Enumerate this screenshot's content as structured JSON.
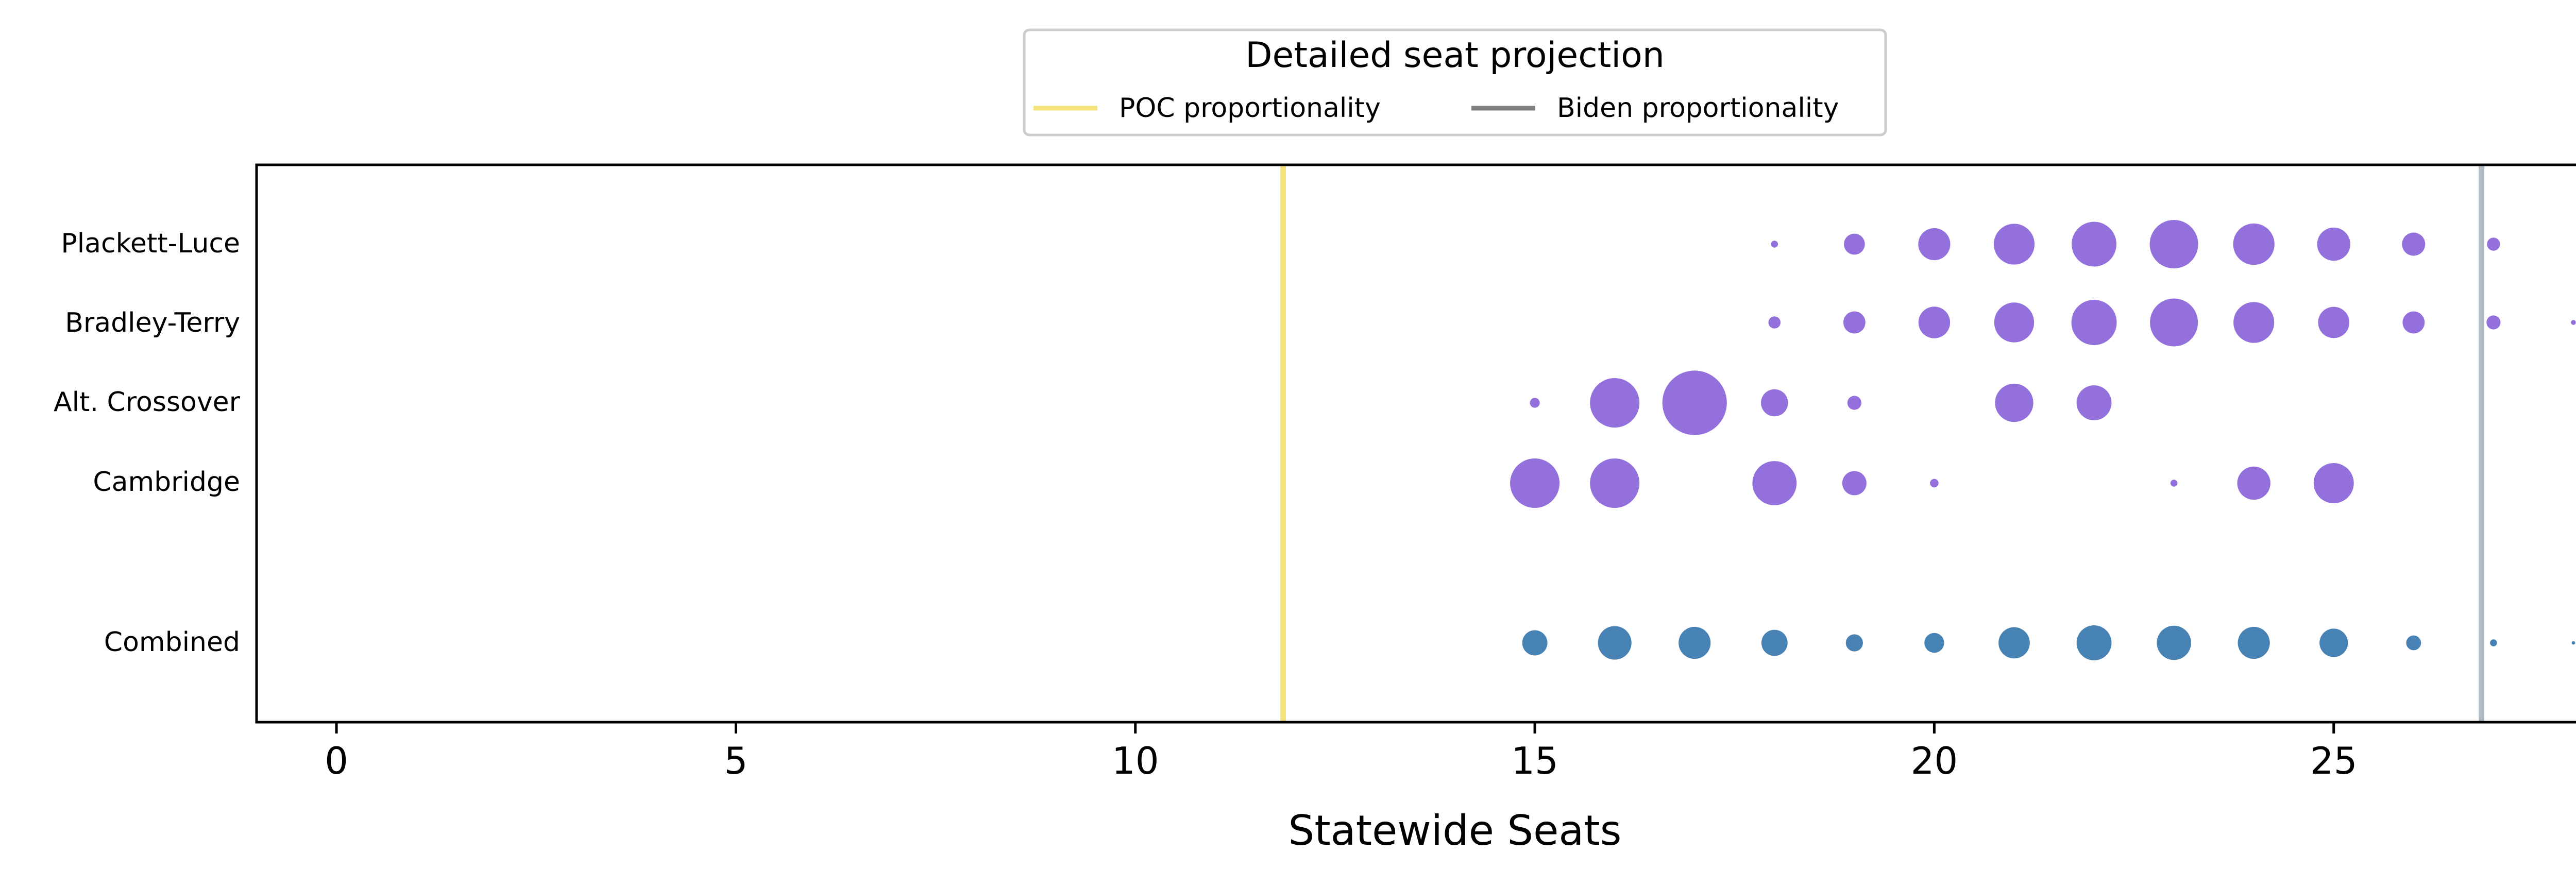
{
  "chart_data": {
    "type": "scatter",
    "title": "",
    "xlabel": "Statewide Seats",
    "ylabel": "",
    "xlim": [
      -1,
      29
    ],
    "xticks": [
      0,
      5,
      10,
      15,
      20,
      25
    ],
    "grid": false,
    "legend": {
      "title": "Detailed seat projection",
      "placement": "top-center",
      "entries": [
        {
          "name": "POC proportionality",
          "color": "#f4e37a"
        },
        {
          "name": "Biden proportionality",
          "color": "#808080"
        }
      ]
    },
    "reference_lines": [
      {
        "name": "POC proportionality",
        "x": 11.85,
        "color": "#f4e37a",
        "display_color": "#f4e37a"
      },
      {
        "name": "Biden proportionality",
        "x": 26.85,
        "color": "#808080",
        "display_color": "#b4bcc4"
      }
    ],
    "rows": [
      "Plackett-Luce",
      "Bradley-Terry",
      "Alt. Crossover",
      "Cambridge",
      "Combined"
    ],
    "series": [
      {
        "name": "Plackett-Luce",
        "color": "#9370db",
        "points": [
          {
            "x": 18,
            "size": 0.02
          },
          {
            "x": 19,
            "size": 0.18
          },
          {
            "x": 20,
            "size": 0.42
          },
          {
            "x": 21,
            "size": 0.68
          },
          {
            "x": 22,
            "size": 0.82
          },
          {
            "x": 23,
            "size": 0.96
          },
          {
            "x": 24,
            "size": 0.7
          },
          {
            "x": 25,
            "size": 0.45
          },
          {
            "x": 26,
            "size": 0.22
          },
          {
            "x": 27,
            "size": 0.07
          }
        ]
      },
      {
        "name": "Bradley-Terry",
        "color": "#9370db",
        "points": [
          {
            "x": 18,
            "size": 0.06
          },
          {
            "x": 19,
            "size": 0.2
          },
          {
            "x": 20,
            "size": 0.41
          },
          {
            "x": 21,
            "size": 0.65
          },
          {
            "x": 22,
            "size": 0.84
          },
          {
            "x": 23,
            "size": 0.94
          },
          {
            "x": 24,
            "size": 0.68
          },
          {
            "x": 25,
            "size": 0.4
          },
          {
            "x": 26,
            "size": 0.2
          },
          {
            "x": 27,
            "size": 0.08
          },
          {
            "x": 28,
            "size": 0.01
          }
        ]
      },
      {
        "name": "Alt. Crossover",
        "color": "#9370db",
        "points": [
          {
            "x": 15,
            "size": 0.04
          },
          {
            "x": 16,
            "size": 1.0
          },
          {
            "x": 17,
            "size": 1.7
          },
          {
            "x": 18,
            "size": 0.3
          },
          {
            "x": 19,
            "size": 0.08
          },
          {
            "x": 21,
            "size": 0.6
          },
          {
            "x": 22,
            "size": 0.5
          }
        ]
      },
      {
        "name": "Cambridge",
        "color": "#9370db",
        "points": [
          {
            "x": 15,
            "size": 1.0
          },
          {
            "x": 16,
            "size": 1.0
          },
          {
            "x": 18,
            "size": 0.8
          },
          {
            "x": 19,
            "size": 0.24
          },
          {
            "x": 20,
            "size": 0.03
          },
          {
            "x": 23,
            "size": 0.02
          },
          {
            "x": 24,
            "size": 0.45
          },
          {
            "x": 25,
            "size": 0.66
          }
        ]
      },
      {
        "name": "Combined",
        "color": "#4682b4",
        "points": [
          {
            "x": 15,
            "size": 0.26
          },
          {
            "x": 16,
            "size": 0.46
          },
          {
            "x": 17,
            "size": 0.42
          },
          {
            "x": 18,
            "size": 0.28
          },
          {
            "x": 19,
            "size": 0.12
          },
          {
            "x": 20,
            "size": 0.16
          },
          {
            "x": 21,
            "size": 0.4
          },
          {
            "x": 22,
            "size": 0.5
          },
          {
            "x": 23,
            "size": 0.48
          },
          {
            "x": 24,
            "size": 0.42
          },
          {
            "x": 25,
            "size": 0.33
          },
          {
            "x": 26,
            "size": 0.09
          },
          {
            "x": 27,
            "size": 0.02
          },
          {
            "x": 28,
            "size": 0.005
          }
        ]
      }
    ]
  }
}
